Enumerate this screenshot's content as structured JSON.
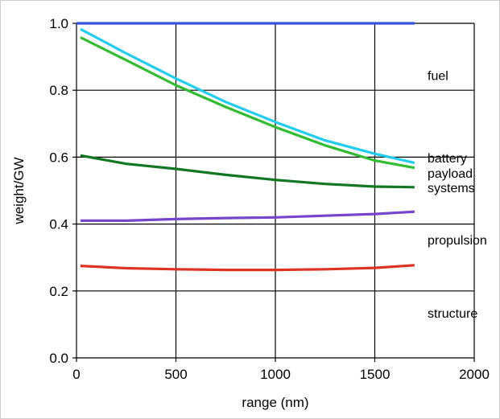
{
  "chart_data": {
    "type": "line",
    "title": "",
    "xlabel": "range (nm)",
    "ylabel": "weight/GW",
    "xlim": [
      0,
      2000
    ],
    "ylim": [
      0,
      1.0
    ],
    "xticks": [
      0,
      500,
      1000,
      1500,
      2000
    ],
    "yticks": [
      0.0,
      0.2,
      0.4,
      0.6,
      0.8,
      1.0
    ],
    "ytick_labels": [
      "0.0",
      "0.2",
      "0.4",
      "0.6",
      "0.8",
      "1.0"
    ],
    "grid": true,
    "legend": "none",
    "series": [
      {
        "color": "#3355dd",
        "x": [
          0,
          500,
          1000,
          1500,
          1700
        ],
        "y": [
          1.0,
          1.0,
          1.0,
          1.0,
          1.0
        ]
      },
      {
        "color": "#22ccee",
        "x": [
          20,
          250,
          500,
          750,
          1000,
          1250,
          1500,
          1700
        ],
        "y": [
          0.983,
          0.91,
          0.835,
          0.765,
          0.705,
          0.65,
          0.61,
          0.583
        ]
      },
      {
        "color": "#33bb33",
        "x": [
          20,
          250,
          500,
          750,
          1000,
          1250,
          1500,
          1700
        ],
        "y": [
          0.958,
          0.89,
          0.815,
          0.75,
          0.69,
          0.635,
          0.59,
          0.568
        ]
      },
      {
        "color": "#117722",
        "x": [
          20,
          250,
          500,
          750,
          1000,
          1250,
          1500,
          1700
        ],
        "y": [
          0.605,
          0.58,
          0.565,
          0.547,
          0.532,
          0.52,
          0.512,
          0.51
        ]
      },
      {
        "color": "#7744cc",
        "x": [
          20,
          250,
          500,
          750,
          1000,
          1250,
          1500,
          1700
        ],
        "y": [
          0.41,
          0.41,
          0.415,
          0.418,
          0.42,
          0.425,
          0.43,
          0.437
        ]
      },
      {
        "color": "#dd3322",
        "x": [
          20,
          250,
          500,
          750,
          1000,
          1250,
          1500,
          1700
        ],
        "y": [
          0.275,
          0.268,
          0.265,
          0.263,
          0.263,
          0.265,
          0.269,
          0.277
        ]
      }
    ],
    "annotations": [
      {
        "text": "fuel",
        "y": 0.845
      },
      {
        "text": "battery",
        "y": 0.598
      },
      {
        "text": "payload",
        "y": 0.553
      },
      {
        "text": "systems",
        "y": 0.51
      },
      {
        "text": "propulsion",
        "y": 0.353
      },
      {
        "text": "structure",
        "y": 0.135
      }
    ]
  }
}
